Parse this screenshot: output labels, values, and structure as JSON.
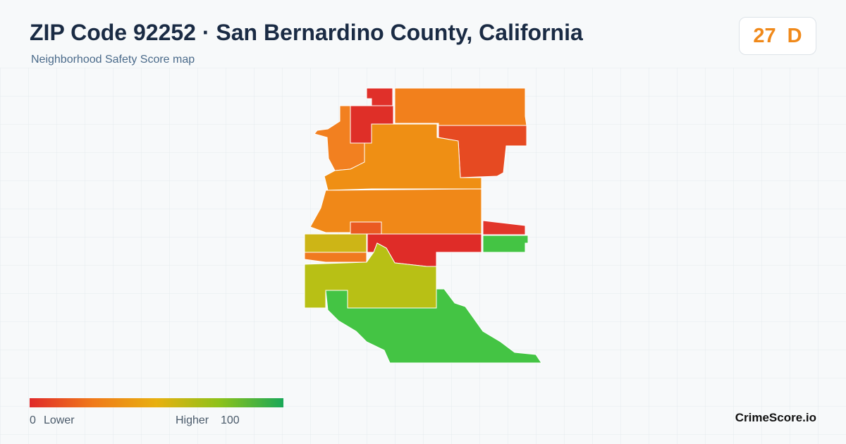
{
  "header": {
    "title": "ZIP Code 92252 · San Bernardino County, California",
    "subtitle": "Neighborhood Safety Score map"
  },
  "badge": {
    "score": 27,
    "grade": "D"
  },
  "legend": {
    "min": "0",
    "min_label": "Lower",
    "max_label": "Higher",
    "max": "100"
  },
  "brand": "CrimeScore.io"
}
